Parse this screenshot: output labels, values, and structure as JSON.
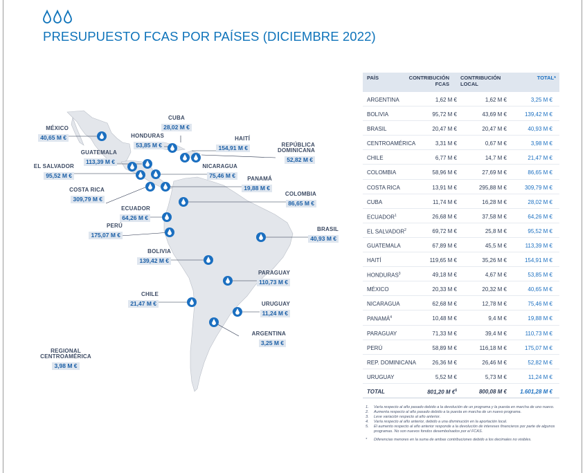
{
  "page": {
    "title": "PRESUPUESTO FCAS POR PAÍSES (DICIEMBRE 2022)",
    "brand_color": "#0e73ba",
    "drop_icon": "water-drop-icon"
  },
  "map_labels": [
    {
      "id": "mexico",
      "name": "MÉXICO",
      "value": "40,65 M €"
    },
    {
      "id": "cuba",
      "name": "CUBA",
      "value": "28,02 M €"
    },
    {
      "id": "honduras",
      "name": "HONDURAS",
      "value": "53,85 M €"
    },
    {
      "id": "haiti",
      "name": "HAITÍ",
      "value": "154,91 M €"
    },
    {
      "id": "rep-dominicana",
      "name": "REPÚBLICA DOMINICANA",
      "name_line1": "REPÚBLICA",
      "name_line2": "DOMINICANA",
      "value": "52,82 M €"
    },
    {
      "id": "guatemala",
      "name": "GUATEMALA",
      "value": "113,39 M €"
    },
    {
      "id": "el-salvador",
      "name": "EL SALVADOR",
      "value": "95,52 M €"
    },
    {
      "id": "nicaragua",
      "name": "NICARAGUA",
      "value": "75,46 M €"
    },
    {
      "id": "panama",
      "name": "PANAMÁ",
      "value": "19,88 M €"
    },
    {
      "id": "costa-rica",
      "name": "COSTA RICA",
      "value": "309,79 M €"
    },
    {
      "id": "colombia",
      "name": "COLOMBIA",
      "value": "86,65 M €"
    },
    {
      "id": "ecuador",
      "name": "ECUADOR",
      "value": "64,26 M €"
    },
    {
      "id": "peru",
      "name": "PERÚ",
      "value": "175,07 M €"
    },
    {
      "id": "brasil",
      "name": "BRASIL",
      "value": "40,93 M €"
    },
    {
      "id": "bolivia",
      "name": "BOLIVIA",
      "value": "139,42 M €"
    },
    {
      "id": "paraguay",
      "name": "PARAGUAY",
      "value": "110,73 M €"
    },
    {
      "id": "chile",
      "name": "CHILE",
      "value": "21,47 M €"
    },
    {
      "id": "uruguay",
      "name": "URUGUAY",
      "value": "11,24 M €"
    },
    {
      "id": "argentina",
      "name": "ARGENTINA",
      "value": "3,25 M €"
    },
    {
      "id": "regional",
      "name": "REGIONAL CENTROAMÉRICA",
      "name_line1": "REGIONAL",
      "name_line2": "CENTROAMÉRICA",
      "value": "3,98 M €"
    }
  ],
  "table": {
    "headers": {
      "pais": "PAÍS",
      "fcas_l1": "CONTRIBUCIÓN",
      "fcas_l2": "FCAS",
      "local_l1": "CONTRIBUCIÓN",
      "local_l2": "LOCAL",
      "total": "TOTAL*"
    },
    "rows": [
      {
        "pais": "ARGENTINA",
        "sup": "",
        "fcas": "1,62 M €",
        "local": "1,62 M €",
        "total": "3,25 M €"
      },
      {
        "pais": "BOLIVIA",
        "sup": "",
        "fcas": "95,72 M €",
        "local": "43,69 M €",
        "total": "139,42 M €"
      },
      {
        "pais": "BRASIL",
        "sup": "",
        "fcas": "20,47 M €",
        "local": "20,47 M €",
        "total": "40,93 M €"
      },
      {
        "pais": "CENTROAMÉRICA",
        "sup": "",
        "fcas": "3,31 M €",
        "local": "0,67 M €",
        "total": "3,98 M €"
      },
      {
        "pais": "CHILE",
        "sup": "",
        "fcas": "6,77 M €",
        "local": "14,7 M €",
        "total": "21,47 M €"
      },
      {
        "pais": "COLOMBIA",
        "sup": "",
        "fcas": "58,96 M €",
        "local": "27,69 M €",
        "total": "86,65 M €"
      },
      {
        "pais": "COSTA RICA",
        "sup": "",
        "fcas": "13,91 M €",
        "local": "295,88 M €",
        "total": "309,79 M €"
      },
      {
        "pais": "CUBA",
        "sup": "",
        "fcas": "11,74 M €",
        "local": "16,28 M €",
        "total": "28,02 M €"
      },
      {
        "pais": "ECUADOR",
        "sup": "1",
        "fcas": "26,68 M €",
        "local": "37,58 M €",
        "total": "64,26 M €"
      },
      {
        "pais": "EL SALVADOR",
        "sup": "2",
        "fcas": "69,72 M €",
        "local": "25,8 M €",
        "total": "95,52 M €"
      },
      {
        "pais": "GUATEMALA",
        "sup": "",
        "fcas": "67,89 M €",
        "local": "45,5 M €",
        "total": "113,39 M €"
      },
      {
        "pais": "HAITÍ",
        "sup": "",
        "fcas": "119,65 M €",
        "local": "35,26 M €",
        "total": "154,91 M €"
      },
      {
        "pais": "HONDURAS",
        "sup": "3",
        "fcas": "49,18 M €",
        "local": "4,67 M €",
        "total": "53,85 M €"
      },
      {
        "pais": "MÉXICO",
        "sup": "",
        "fcas": "20,33 M €",
        "local": "20,32 M €",
        "total": "40,65 M €"
      },
      {
        "pais": "NICARAGUA",
        "sup": "",
        "fcas": "62,68 M €",
        "local": "12,78 M €",
        "total": "75,46 M €"
      },
      {
        "pais": "PANAMÁ",
        "sup": "4",
        "fcas": "10,48 M €",
        "local": "9,4 M €",
        "total": "19,88 M €"
      },
      {
        "pais": "PARAGUAY",
        "sup": "",
        "fcas": "71,33 M €",
        "local": "39,4 M €",
        "total": "110,73 M €"
      },
      {
        "pais": "PERÚ",
        "sup": "",
        "fcas": "58,89 M €",
        "local": "116,18 M €",
        "total": "175,07 M €"
      },
      {
        "pais": "REP. DOMINICANA",
        "sup": "",
        "fcas": "26,36 M €",
        "local": "26,46 M €",
        "total": "52,82 M €"
      },
      {
        "pais": "URUGUAY",
        "sup": "",
        "fcas": "5,52 M €",
        "local": "5,73 M €",
        "total": "11,24 M €"
      }
    ],
    "total": {
      "pais": "TOTAL",
      "fcas": "801,20 M €",
      "fcas_sup": "5",
      "local": "800,08 M €",
      "total": "1.601,28 M €"
    }
  },
  "notes": [
    {
      "n": "1.",
      "text": "Varía respecto al año pasado debido a la devolución de un programa y la puesta en marcha de uno nuevo."
    },
    {
      "n": "2.",
      "text": "Aumenta respecto al año pasado debido a la puesta en marcha de un nuevo programa."
    },
    {
      "n": "3.",
      "text": "Leve variación respecto al año anterior."
    },
    {
      "n": "4.",
      "text": "Varía respecto al año anterior, debido a una disminución en la aportación local."
    },
    {
      "n": "5.",
      "text": "El aumento respecto al año anterior responde a la devolución de intereses financieros por parte de algunos programas. No son nuevos fondos desembolsados por el FCAS."
    },
    {
      "n": "*",
      "text": "Diferencias menores en la suma de ambas contribuciones debido a los decimales no visibles."
    }
  ]
}
